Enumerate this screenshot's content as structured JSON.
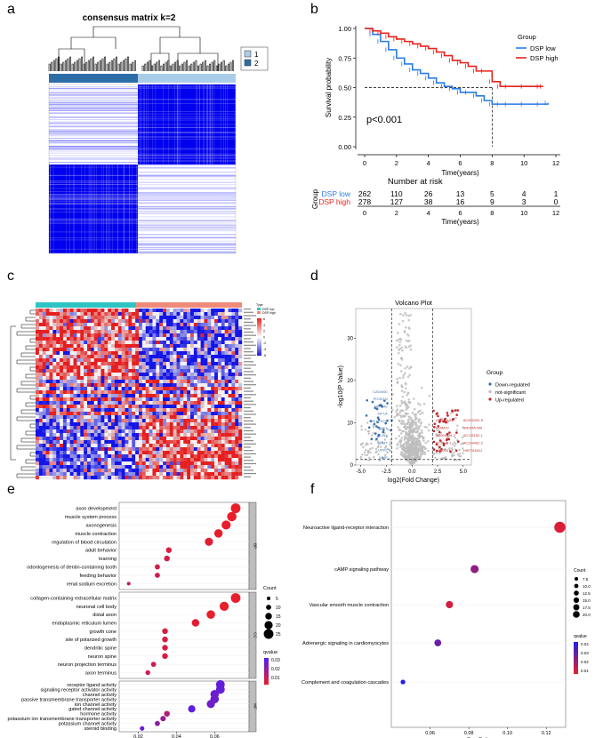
{
  "panel_labels": [
    "a",
    "b",
    "c",
    "d",
    "e",
    "f"
  ],
  "chart_data": [
    {
      "panel": "a",
      "type": "heatmap",
      "title": "consensus matrix k=2",
      "legend": [
        "1",
        "2"
      ],
      "colors": {
        "cluster1": "#a9cde9",
        "cluster2": "#2d6ea8",
        "high": "#0000ee",
        "low": "#ffffff"
      }
    },
    {
      "panel": "b",
      "type": "line",
      "xlabel": "Time(years)",
      "ylabel": "Survival probability",
      "xlim": [
        0,
        12
      ],
      "ylim": [
        0,
        1
      ],
      "xticks": [
        "0",
        "2",
        "4",
        "6",
        "8",
        "10",
        "12"
      ],
      "yticks": [
        "0.00",
        "0.25",
        "0.50",
        "0.75",
        "1.00"
      ],
      "legend_title": "Group",
      "annotation": "p<0.001",
      "series": [
        {
          "name": "DSP low",
          "color": "#2a7be4",
          "x": [
            0,
            0.5,
            1,
            1.5,
            2,
            2.5,
            3,
            3.5,
            4,
            4.5,
            5,
            5.5,
            6,
            6.5,
            7,
            7.5,
            8,
            8.5,
            9,
            10,
            11,
            11.5
          ],
          "y": [
            1.0,
            0.95,
            0.89,
            0.82,
            0.75,
            0.7,
            0.65,
            0.62,
            0.58,
            0.54,
            0.51,
            0.49,
            0.46,
            0.46,
            0.43,
            0.39,
            0.36,
            0.36,
            0.36,
            0.36,
            0.36,
            0.37
          ]
        },
        {
          "name": "DSP high",
          "color": "#e8231e",
          "x": [
            0,
            0.5,
            1,
            1.5,
            2,
            2.5,
            3,
            3.5,
            4,
            4.5,
            5,
            5.5,
            6,
            6.5,
            7,
            7.5,
            8,
            8.5,
            9,
            10,
            11,
            11.2
          ],
          "y": [
            1.0,
            0.98,
            0.96,
            0.93,
            0.91,
            0.89,
            0.87,
            0.85,
            0.83,
            0.8,
            0.77,
            0.73,
            0.71,
            0.68,
            0.64,
            0.64,
            0.55,
            0.51,
            0.51,
            0.51,
            0.51,
            0.51
          ]
        }
      ],
      "risk_table": {
        "title": "Number at risk",
        "ylabel": "Group",
        "times": [
          "0",
          "2",
          "4",
          "6",
          "8",
          "10",
          "12"
        ],
        "xlabel": "Time(years)",
        "rows": [
          {
            "name": "DSP low",
            "values": [
              "262",
              "110",
              "26",
              "13",
              "5",
              "4",
              "1"
            ]
          },
          {
            "name": "DSP high",
            "values": [
              "278",
              "127",
              "38",
              "16",
              "9",
              "3",
              "0"
            ]
          }
        ]
      }
    },
    {
      "panel": "c",
      "type": "heatmap",
      "legend_title": "Type",
      "legend": [
        "DSP low",
        "DSP high"
      ],
      "colors": {
        "low_group": "#2ec4c4",
        "high_group": "#f08a7a",
        "pos": "#e8231e",
        "neg": "#1a1ad6",
        "mid": "#ffffff"
      },
      "scale_ticks": [
        "6",
        "4",
        "2",
        "0",
        "-2",
        "-4",
        "-6"
      ]
    },
    {
      "panel": "d",
      "type": "scatter",
      "title": "Volcano Plot",
      "xlabel": "log2(Fold Change)",
      "ylabel": "-log10(P Value)",
      "xticks": [
        "-5.0",
        "-2.5",
        "0.0",
        "2.5",
        "5.0"
      ],
      "yticks": [
        "0",
        "10",
        "20",
        "30"
      ],
      "legend_title": "Group",
      "series": [
        {
          "name": "Down-regulated",
          "color": "#3a6fb0"
        },
        {
          "name": "not-significant",
          "color": "#bdbdbd"
        },
        {
          "name": "Up-regulated",
          "color": "#c0282a"
        }
      ],
      "down_labels": [
        "C20orf20",
        "PCSK1N",
        "ZBP1M2",
        "KIF1A",
        "SLC7A7C",
        "WIF1",
        "PLIN4",
        "PNMT",
        "UPK2",
        "MMP"
      ],
      "up_labels": [
        "HIF1a-AS2",
        "AC002251.5",
        "SMIM10",
        "SNORA79B",
        "AC004854.2",
        "AC131152.1",
        "AC2443.1",
        "AC114402.2",
        "AC00107",
        "HIST1H2AJ"
      ]
    },
    {
      "panel": "e",
      "type": "scatter",
      "xlabel": "GeneRatio",
      "xticks": [
        "0.02",
        "0.04",
        "0.06"
      ],
      "xlim": [
        0.01,
        0.078
      ],
      "size_legend_title": "Count",
      "size_legend": [
        "5",
        "10",
        "15",
        "20",
        "25"
      ],
      "color_legend_title": "qvalue",
      "color_ticks": [
        "0.03",
        "0.02",
        "0.01"
      ],
      "groups": [
        {
          "name": "BP",
          "terms": [
            "axon development",
            "muscle system process",
            "axonogenesis",
            "muscle contraction",
            "regulation of blood circulation",
            "adult behavior",
            "learning",
            "odontogenesis of dentin-containing tooth",
            "feeding behavior",
            "renal sodium excretion"
          ],
          "ratio": [
            0.071,
            0.069,
            0.066,
            0.062,
            0.057,
            0.036,
            0.035,
            0.03,
            0.03,
            0.015
          ],
          "count": [
            25,
            24,
            23,
            21,
            20,
            12,
            12,
            10,
            10,
            5
          ],
          "q": [
            0.0005,
            0.0005,
            0.0008,
            0.001,
            0.002,
            0.004,
            0.005,
            0.006,
            0.006,
            0.01
          ]
        },
        {
          "name": "CC",
          "terms": [
            "collagen-containing extracellular matrix",
            "neuronal cell body",
            "distal axon",
            "endoplasmic reticulum lumen",
            "growth cone",
            "site of polarized growth",
            "dendritic spine",
            "neuron spine",
            "neuron projection terminus",
            "axon terminus"
          ],
          "ratio": [
            0.071,
            0.065,
            0.058,
            0.05,
            0.034,
            0.034,
            0.034,
            0.034,
            0.028,
            0.025
          ],
          "count": [
            25,
            23,
            21,
            18,
            12,
            12,
            12,
            12,
            10,
            9
          ],
          "q": [
            0.0005,
            0.0008,
            0.001,
            0.002,
            0.004,
            0.004,
            0.004,
            0.004,
            0.006,
            0.007
          ]
        },
        {
          "name": "MF",
          "terms": [
            "receptor ligand activity",
            "signaling receptor activator activity",
            "channel activity",
            "passive transmembrane transporter activity",
            "ion channel activity",
            "gated channel activity",
            "hormone activity",
            "potassium ion transmembrane transporter activity",
            "potassium channel activity",
            "steroid binding"
          ],
          "ratio": [
            0.063,
            0.063,
            0.06,
            0.06,
            0.058,
            0.048,
            0.035,
            0.033,
            0.03,
            0.022
          ],
          "count": [
            22,
            22,
            21,
            21,
            20,
            17,
            12,
            11,
            10,
            8
          ],
          "q": [
            0.029,
            0.029,
            0.027,
            0.027,
            0.026,
            0.03,
            0.012,
            0.018,
            0.02,
            0.028
          ]
        }
      ],
      "group_order": [
        "BP",
        "CC",
        "MF"
      ]
    },
    {
      "panel": "f",
      "type": "scatter",
      "xlabel": "GeneRatio",
      "xticks": [
        "0.06",
        "0.08",
        "0.10",
        "0.12"
      ],
      "xlim": [
        0.04,
        0.13
      ],
      "size_legend_title": "Count",
      "size_legend": [
        "7.5",
        "10.0",
        "12.5",
        "15.0",
        "17.5",
        "20.0"
      ],
      "color_legend_title": "qvalue",
      "color_ticks": [
        "0.04",
        "0.03",
        "0.02",
        "0.01"
      ],
      "terms": [
        "Neuroactive ligand-receptor interaction",
        "cAMP signaling pathway",
        "Vascular smooth muscle contraction",
        "Adrenergic signaling in cardiomyocytes",
        "Complement and coagulation cascades"
      ],
      "ratio": [
        0.127,
        0.083,
        0.07,
        0.064,
        0.046
      ],
      "count": [
        21,
        14,
        12,
        11,
        6
      ],
      "q": [
        0.004,
        0.021,
        0.006,
        0.03,
        0.046
      ]
    }
  ]
}
